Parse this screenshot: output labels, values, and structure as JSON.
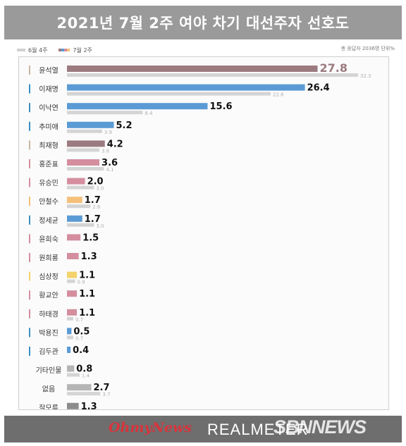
{
  "header": {
    "title": "2021년 7월 2주 여야 차기 대선주자 선호도"
  },
  "legend": {
    "prev_label": "6월 4주",
    "curr_label": "7월 2주",
    "prev_color": "#d0d0d0",
    "curr_colors": [
      "#9b7b80",
      "#5b9bd5",
      "#d48e9e",
      "#f5c07a"
    ]
  },
  "meta": {
    "text": "총 응답자 2036명   단위%"
  },
  "chart_data": {
    "type": "bar",
    "orientation": "horizontal",
    "categories": [
      "윤석열",
      "이재명",
      "이낙연",
      "추미애",
      "최재형",
      "홍준표",
      "유승민",
      "안철수",
      "정세균",
      "윤희숙",
      "원희룡",
      "심상정",
      "황교안",
      "하태경",
      "박용진",
      "김두관",
      "기타인물",
      "없음",
      "잘모름"
    ],
    "series": [
      {
        "name": "7월 2주",
        "values": [
          27.8,
          26.4,
          15.6,
          5.2,
          4.2,
          3.6,
          2.0,
          1.7,
          1.7,
          1.5,
          1.3,
          1.1,
          1.1,
          1.1,
          0.5,
          0.4,
          0.8,
          2.7,
          1.3
        ]
      },
      {
        "name": "6월 4주",
        "values": [
          32.3,
          22.6,
          8.4,
          3.9,
          3.6,
          4.1,
          3.0,
          2.6,
          3.0,
          null,
          null,
          0.9,
          null,
          0.7,
          0.7,
          null,
          1.4,
          3.7,
          3.0
        ]
      }
    ],
    "bar_colors": [
      "#9b7b80",
      "#5b9bd5",
      "#5b9bd5",
      "#5b9bd5",
      "#9b7b80",
      "#d48e9e",
      "#d48e9e",
      "#f5c07a",
      "#5b9bd5",
      "#d48e9e",
      "#d48e9e",
      "#f3d36b",
      "#d48e9e",
      "#d48e9e",
      "#5b9bd5",
      "#5b9bd5",
      "#b5b5b5",
      "#b5b5b5",
      "#8c8c8c"
    ],
    "marker_colors": [
      "#c8b6a0",
      "#3a8fc4",
      "#3a8fc4",
      "#3a8fc4",
      "#c8b6a0",
      "#d48e9e",
      "#d48e9e",
      "#f5c07a",
      "#3a8fc4",
      "#d48e9e",
      "#d48e9e",
      "#f3d36b",
      "#d48e9e",
      "#d48e9e",
      "#3a8fc4",
      "#3a8fc4",
      null,
      null,
      null
    ],
    "xlim": [
      0,
      33
    ]
  },
  "footer": {
    "logo_left": "OhmyNews",
    "logo_center": "REALMETER",
    "watermark": "SBNNEWS"
  }
}
